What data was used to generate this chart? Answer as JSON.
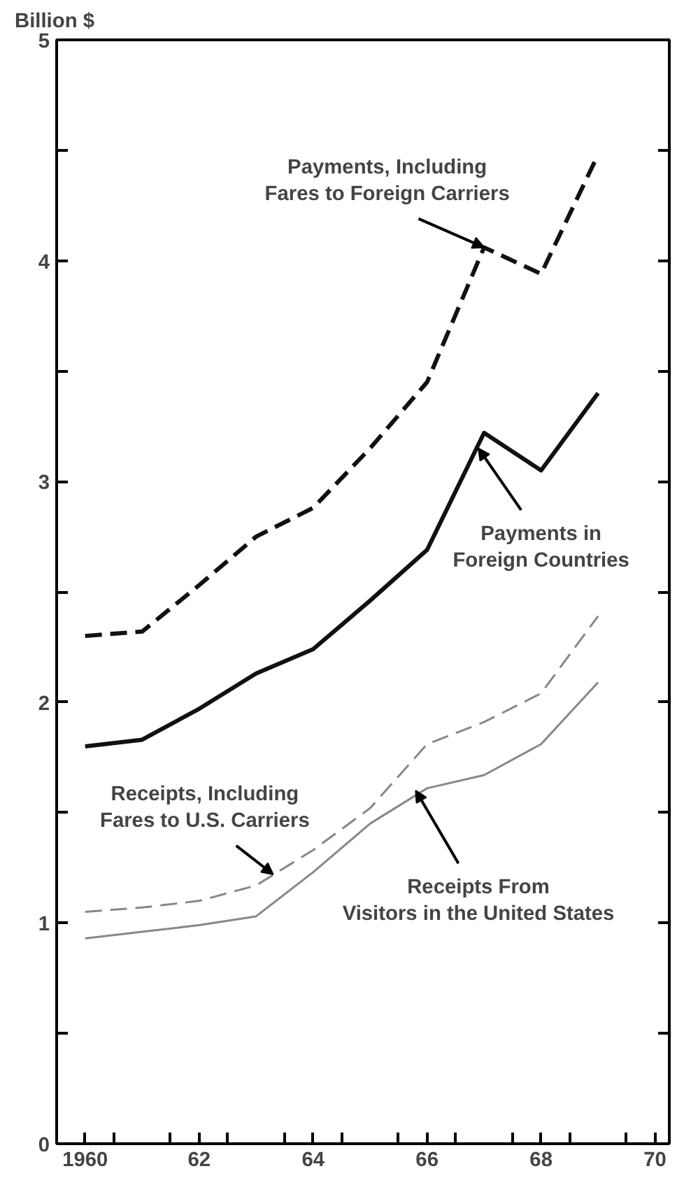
{
  "chart_data": {
    "type": "line",
    "ylabel": "Billion $",
    "x": [
      1960,
      1961,
      1962,
      1963,
      1964,
      1965,
      1966,
      1967,
      1968,
      1969
    ],
    "series": [
      {
        "color": "#111111",
        "line_style": "dashed",
        "values": [
          2.3,
          2.32,
          2.53,
          2.75,
          2.88,
          3.15,
          3.45,
          4.06,
          3.94,
          4.48
        ]
      },
      {
        "color": "#111111",
        "line_style": "solid",
        "values": [
          1.8,
          1.83,
          1.97,
          2.13,
          2.24,
          2.46,
          2.69,
          3.22,
          3.05,
          3.4
        ]
      },
      {
        "color": "#888888",
        "line_style": "dashed",
        "values": [
          1.05,
          1.07,
          1.1,
          1.17,
          1.33,
          1.52,
          1.81,
          1.91,
          2.04,
          2.39
        ]
      },
      {
        "color": "#888888",
        "line_style": "solid",
        "values": [
          0.93,
          0.96,
          0.99,
          1.03,
          1.23,
          1.45,
          1.61,
          1.67,
          1.81,
          2.09
        ]
      }
    ],
    "xlim": [
      1959.5,
      1970.25
    ],
    "ylim": [
      0,
      5
    ],
    "xticks": [
      {
        "value": 1960,
        "label": "1960"
      },
      {
        "value": 1960.5,
        "label": null
      },
      {
        "value": 1961.5,
        "label": null
      },
      {
        "value": 1962,
        "label": "62"
      },
      {
        "value": 1962.5,
        "label": null
      },
      {
        "value": 1963.5,
        "label": null
      },
      {
        "value": 1964,
        "label": "64"
      },
      {
        "value": 1964.5,
        "label": null
      },
      {
        "value": 1965.5,
        "label": null
      },
      {
        "value": 1966,
        "label": "66"
      },
      {
        "value": 1966.5,
        "label": null
      },
      {
        "value": 1967.5,
        "label": null
      },
      {
        "value": 1968,
        "label": "68"
      },
      {
        "value": 1968.5,
        "label": null
      },
      {
        "value": 1969.5,
        "label": null
      },
      {
        "value": 1970,
        "label": "70"
      }
    ],
    "yticks": [
      0,
      {
        "value": 0.5,
        "label": null
      },
      1,
      {
        "value": 1.5,
        "label": null
      },
      2,
      {
        "value": 2.5,
        "label": null
      },
      3,
      {
        "value": 3.5,
        "label": null
      },
      4,
      {
        "value": 4.5,
        "label": null
      },
      5
    ],
    "grid": false,
    "marker": "none",
    "annotations": [
      {
        "text": "Payments, Including\nFares to Foreign Carriers",
        "x": 1967,
        "y": 4.06
      },
      {
        "text": "Payments in\nForeign Countries",
        "x": 1966.9,
        "y": 3.15
      },
      {
        "text": "Receipts, Including\nFares to U.S. Carriers",
        "x": 1963.3,
        "y": 1.22
      },
      {
        "text": "Receipts From\nVisitors in the United States",
        "x": 1965.8,
        "y": 1.6
      }
    ]
  }
}
